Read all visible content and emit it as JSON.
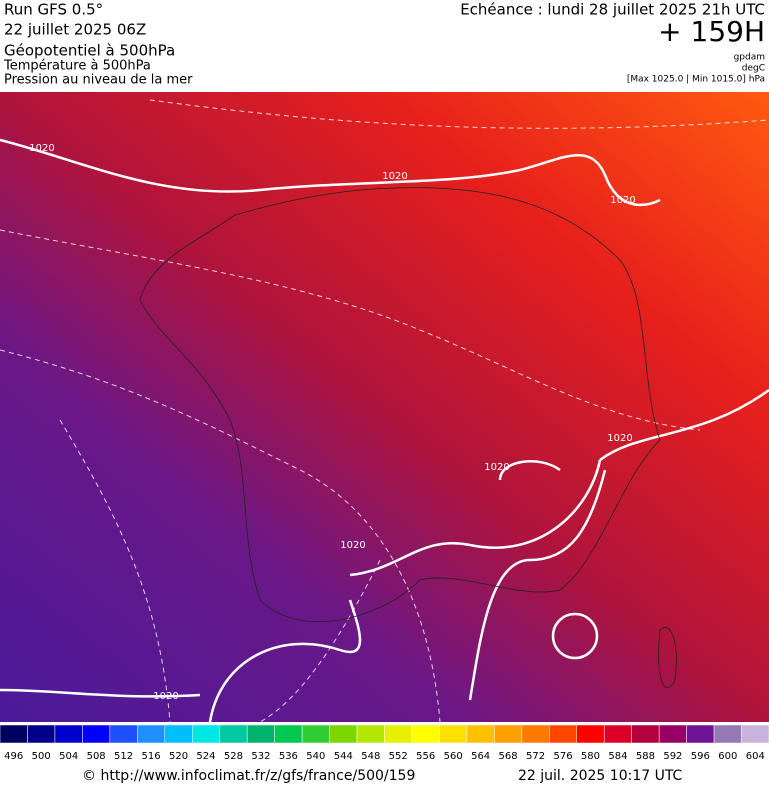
{
  "header": {
    "run": "Run GFS 0.5°",
    "run_date": "22 juillet 2025 06Z",
    "field1": "Géopotentiel à 500hPa",
    "field2": "Température à 500hPa",
    "field3": "Pression au niveau de la mer",
    "valid": "Echéance : lundi 28 juillet 2025 21h UTC",
    "lead": "+ 159H",
    "unit1": "gpdam",
    "unit2": "degC",
    "unit3": "[Max 1025.0 | Min 1015.0] hPa"
  },
  "map": {
    "contour_labels": [
      "1020",
      "1020",
      "1020",
      "1020",
      "1020",
      "1020",
      "1020"
    ]
  },
  "colorbar": {
    "values": [
      496,
      500,
      504,
      508,
      512,
      516,
      520,
      524,
      528,
      532,
      536,
      540,
      544,
      548,
      552,
      556,
      560,
      564,
      568,
      572,
      576,
      580,
      584,
      588,
      592,
      596,
      600,
      604
    ],
    "colors": [
      "#000060",
      "#00008b",
      "#0000cd",
      "#0000ff",
      "#1e50ff",
      "#1e90ff",
      "#00bfff",
      "#00e5e5",
      "#00c8a0",
      "#00b46e",
      "#00c850",
      "#32cd32",
      "#7cd700",
      "#b4e600",
      "#e6f000",
      "#ffff00",
      "#ffe000",
      "#ffc000",
      "#ffa000",
      "#ff7800",
      "#ff4600",
      "#ff0000",
      "#dc0028",
      "#b4003c",
      "#960064",
      "#6e1496",
      "#9678b4",
      "#c8b4dc"
    ]
  },
  "footer": {
    "url": "© http://www.infoclimat.fr/z/gfs/france/500/159",
    "timestamp": "22 juil. 2025 10:17 UTC"
  }
}
